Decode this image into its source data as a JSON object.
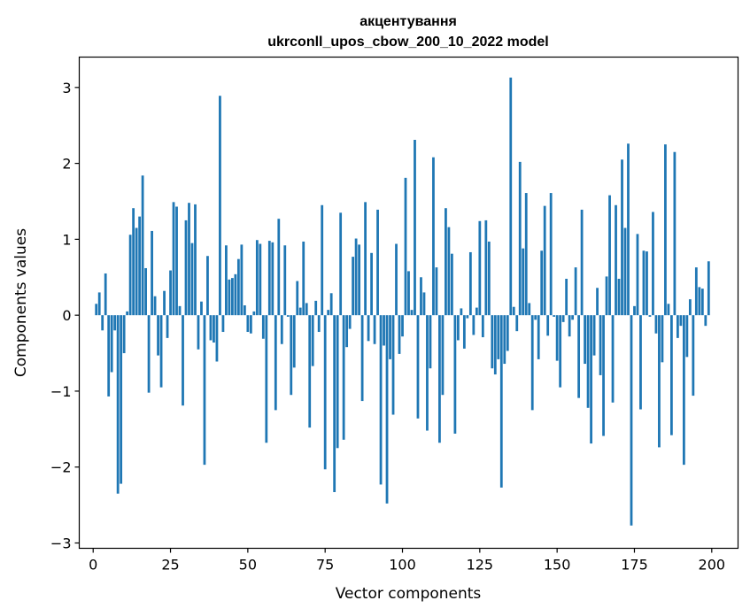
{
  "chart_data": {
    "type": "bar",
    "title": "акцентування",
    "subtitle": "ukrconll_upos_cbow_200_10_2022 model",
    "xlabel": "Vector components",
    "ylabel": "Components values",
    "xlim": [
      -4.5,
      208.5
    ],
    "ylim": [
      -3.07,
      3.4
    ],
    "xticks": [
      0,
      25,
      50,
      75,
      100,
      125,
      150,
      175,
      200
    ],
    "yticks": [
      -3,
      -2,
      -1,
      0,
      1,
      2,
      3
    ],
    "ytick_labels": [
      "−3",
      "−2",
      "−1",
      "0",
      "1",
      "2",
      "3"
    ],
    "color": "#1f77b4",
    "grid": false,
    "x": [
      1,
      2,
      3,
      4,
      5,
      6,
      7,
      8,
      9,
      10,
      11,
      12,
      13,
      14,
      15,
      16,
      17,
      18,
      19,
      20,
      21,
      22,
      23,
      24,
      25,
      26,
      27,
      28,
      29,
      30,
      31,
      32,
      33,
      34,
      35,
      36,
      37,
      38,
      39,
      40,
      41,
      42,
      43,
      44,
      45,
      46,
      47,
      48,
      49,
      50,
      51,
      52,
      53,
      54,
      55,
      56,
      57,
      58,
      59,
      60,
      61,
      62,
      63,
      64,
      65,
      66,
      67,
      68,
      69,
      70,
      71,
      72,
      73,
      74,
      75,
      76,
      77,
      78,
      79,
      80,
      81,
      82,
      83,
      84,
      85,
      86,
      87,
      88,
      89,
      90,
      91,
      92,
      93,
      94,
      95,
      96,
      97,
      98,
      99,
      100,
      101,
      102,
      103,
      104,
      105,
      106,
      107,
      108,
      109,
      110,
      111,
      112,
      113,
      114,
      115,
      116,
      117,
      118,
      119,
      120,
      121,
      122,
      123,
      124,
      125,
      126,
      127,
      128,
      129,
      130,
      131,
      132,
      133,
      134,
      135,
      136,
      137,
      138,
      139,
      140,
      141,
      142,
      143,
      144,
      145,
      146,
      147,
      148,
      149,
      150,
      151,
      152,
      153,
      154,
      155,
      156,
      157,
      158,
      159,
      160,
      161,
      162,
      163,
      164,
      165,
      166,
      167,
      168,
      169,
      170,
      171,
      172,
      173,
      174,
      175,
      176,
      177,
      178,
      179,
      180,
      181,
      182,
      183,
      184,
      185,
      186,
      187,
      188,
      189,
      190,
      191,
      192,
      193,
      194,
      195,
      196,
      197,
      198,
      199
    ],
    "values": [
      0.15,
      0.3,
      -0.2,
      0.55,
      -1.07,
      -0.75,
      -0.2,
      -2.35,
      -2.22,
      -0.5,
      0.05,
      1.06,
      1.41,
      1.15,
      1.3,
      1.84,
      0.62,
      -1.02,
      1.11,
      0.25,
      -0.53,
      -0.95,
      0.32,
      -0.3,
      0.59,
      1.49,
      1.43,
      0.12,
      -1.19,
      1.25,
      1.48,
      0.95,
      1.46,
      -0.45,
      0.18,
      -1.97,
      0.78,
      -0.33,
      -0.36,
      -0.61,
      2.89,
      -0.22,
      0.92,
      0.47,
      0.49,
      0.54,
      0.74,
      0.93,
      0.13,
      -0.22,
      -0.24,
      0.05,
      0.99,
      0.94,
      -0.31,
      -1.68,
      0.98,
      0.96,
      -1.25,
      1.27,
      -0.38,
      0.92,
      -0.02,
      -1.05,
      -0.69,
      0.45,
      0.1,
      0.97,
      0.16,
      -1.48,
      -0.67,
      0.19,
      -0.22,
      1.45,
      -2.03,
      0.07,
      0.29,
      -2.33,
      -1.75,
      1.35,
      -1.64,
      -0.42,
      -0.18,
      0.77,
      1.01,
      0.93,
      -1.13,
      1.49,
      -0.34,
      0.82,
      -0.38,
      1.39,
      -2.23,
      -0.4,
      -2.48,
      -0.58,
      -1.31,
      0.94,
      -0.51,
      -0.28,
      1.81,
      0.58,
      0.07,
      2.31,
      -1.36,
      0.5,
      0.3,
      -1.52,
      -0.7,
      2.08,
      0.63,
      -1.68,
      -1.05,
      1.41,
      1.16,
      0.81,
      -1.56,
      -0.33,
      0.09,
      -0.44,
      -0.04,
      0.83,
      -0.26,
      0.1,
      1.24,
      -0.29,
      1.25,
      0.97,
      -0.7,
      -0.78,
      -0.58,
      -2.27,
      -0.64,
      -0.47,
      3.13,
      0.11,
      -0.21,
      2.02,
      0.88,
      1.61,
      0.16,
      -1.25,
      -0.06,
      -0.58,
      0.85,
      1.44,
      -0.27,
      1.61,
      -0.02,
      -0.6,
      -0.95,
      -0.09,
      0.48,
      -0.28,
      -0.06,
      0.63,
      -1.09,
      1.39,
      -0.64,
      -1.22,
      -1.69,
      -0.53,
      0.36,
      -0.79,
      -1.59,
      0.51,
      1.58,
      -1.15,
      1.45,
      0.48,
      2.05,
      1.15,
      2.26,
      -2.77,
      0.12,
      1.07,
      -1.24,
      0.85,
      0.84,
      -0.02,
      1.36,
      -0.24,
      -1.74,
      -0.62,
      2.25,
      0.15,
      -1.58,
      2.15,
      -0.3,
      -0.14,
      -1.97,
      -0.55,
      0.21,
      -1.06,
      0.63,
      0.37,
      0.35,
      -0.14,
      0.71
    ]
  }
}
